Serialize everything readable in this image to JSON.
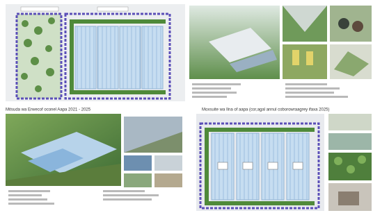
{
  "headings": {
    "bottom_left": "Mitsuda wa Erwecof oconel Aapa 2021 - 2025",
    "bottom_right": "Moxsuite wa Ilna of aapa (cor,agal annul coborowraagrey ifaxa 2025)"
  }
}
